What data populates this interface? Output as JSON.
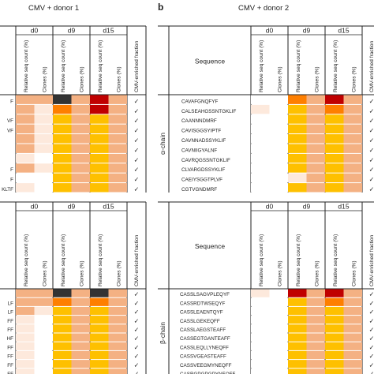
{
  "panel_b_letter": "b",
  "left_title": "CMV + donor 1",
  "right_title": "CMV + donor 2",
  "timepoints": [
    "d0",
    "d9",
    "d15"
  ],
  "col_labels": {
    "relative": "Relative seq count (%)",
    "clones": "Clones (%)",
    "enriched": "CMV-enriched fraction"
  },
  "sequence_header": "Sequence",
  "alpha_label": "α-chain",
  "beta_label": "β-chain",
  "check_mark": "✓",
  "colors": {
    "white": "#ffffff",
    "very_light": "#fde9dc",
    "light": "#f8c4a3",
    "peach": "#f4b183",
    "amber": "#fec000",
    "orange": "#fe7f00",
    "red": "#c00000",
    "dark": "#333333"
  },
  "left_alpha": {
    "sequences": [
      "F",
      "",
      "VF",
      "VF",
      "",
      "",
      "",
      "F",
      "F",
      "KLTF"
    ],
    "rows": [
      [
        "peach",
        "peach",
        "dark",
        "peach",
        "red",
        "peach"
      ],
      [
        "peach",
        "very_light",
        "orange",
        "peach",
        "red",
        "peach"
      ],
      [
        "peach",
        "very_light",
        "amber",
        "peach",
        "amber",
        "peach"
      ],
      [
        "peach",
        "very_light",
        "amber",
        "peach",
        "amber",
        "peach"
      ],
      [
        "peach",
        "very_light",
        "amber",
        "peach",
        "amber",
        "peach"
      ],
      [
        "peach",
        "very_light",
        "amber",
        "peach",
        "amber",
        "peach"
      ],
      [
        "very_light",
        "white",
        "amber",
        "peach",
        "amber",
        "peach"
      ],
      [
        "peach",
        "very_light",
        "amber",
        "peach",
        "amber",
        "peach"
      ],
      [
        "white",
        "white",
        "amber",
        "peach",
        "amber",
        "peach"
      ],
      [
        "very_light",
        "white",
        "amber",
        "peach",
        "amber",
        "peach"
      ]
    ]
  },
  "right_alpha": {
    "sequences": [
      "CAVAFGNQFYF",
      "CALSEAHGSSNTGKLIF",
      "CAANNNDMRF",
      "CAVISGGSYIPTF",
      "CAVNNADSSYKLIF",
      "CAVNIIGYALNF",
      "CAVRQGSSNTGKLIF",
      "CLVARGDSSYKLIF",
      "CAEIYSGGTPLVF",
      "CGTVGNDMRF"
    ],
    "rows": [
      [
        "white",
        "white",
        "orange",
        "peach",
        "red",
        "peach"
      ],
      [
        "very_light",
        "white",
        "amber",
        "peach",
        "orange",
        "peach"
      ],
      [
        "white",
        "white",
        "amber",
        "peach",
        "amber",
        "peach"
      ],
      [
        "white",
        "white",
        "amber",
        "peach",
        "amber",
        "peach"
      ],
      [
        "white",
        "white",
        "amber",
        "peach",
        "amber",
        "peach"
      ],
      [
        "white",
        "white",
        "amber",
        "peach",
        "amber",
        "peach"
      ],
      [
        "white",
        "white",
        "amber",
        "peach",
        "amber",
        "peach"
      ],
      [
        "white",
        "white",
        "amber",
        "peach",
        "amber",
        "peach"
      ],
      [
        "white",
        "white",
        "very_light",
        "peach",
        "amber",
        "peach"
      ],
      [
        "white",
        "white",
        "amber",
        "peach",
        "amber",
        "peach"
      ]
    ]
  },
  "left_beta": {
    "sequences": [
      "",
      "LF",
      "LF",
      "FF",
      "FF",
      "HF",
      "FF",
      "FF",
      "FF",
      "FF"
    ],
    "rows": [
      [
        "peach",
        "peach",
        "dark",
        "peach",
        "dark",
        "peach"
      ],
      [
        "peach",
        "peach",
        "orange",
        "peach",
        "orange",
        "peach"
      ],
      [
        "peach",
        "very_light",
        "amber",
        "peach",
        "amber",
        "peach"
      ],
      [
        "very_light",
        "white",
        "amber",
        "peach",
        "amber",
        "peach"
      ],
      [
        "very_light",
        "white",
        "amber",
        "peach",
        "amber",
        "peach"
      ],
      [
        "very_light",
        "white",
        "amber",
        "peach",
        "amber",
        "peach"
      ],
      [
        "very_light",
        "white",
        "amber",
        "peach",
        "amber",
        "peach"
      ],
      [
        "very_light",
        "white",
        "amber",
        "peach",
        "amber",
        "peach"
      ],
      [
        "very_light",
        "white",
        "amber",
        "peach",
        "amber",
        "peach"
      ],
      [
        "very_light",
        "white",
        "amber",
        "peach",
        "amber",
        "peach"
      ]
    ]
  },
  "right_beta": {
    "sequences": [
      "CASSLSAGVPLEQYF",
      "CASSRDTWSEQYF",
      "CASSLEAENTQYF",
      "CASSLGEKEQFF",
      "CASSLAEGSTEAFF",
      "CASSEGTGANTEAFF",
      "CASSLEQLLYNEQFF",
      "CASSVGEASTEAFF",
      "CASSVEEGMYNEQFF",
      "CASRGPGPGPYNEQFF"
    ],
    "rows": [
      [
        "very_light",
        "white",
        "red",
        "peach",
        "red",
        "peach"
      ],
      [
        "white",
        "white",
        "amber",
        "peach",
        "orange",
        "peach"
      ],
      [
        "white",
        "white",
        "amber",
        "peach",
        "amber",
        "peach"
      ],
      [
        "white",
        "white",
        "amber",
        "peach",
        "amber",
        "peach"
      ],
      [
        "white",
        "white",
        "amber",
        "peach",
        "amber",
        "peach"
      ],
      [
        "white",
        "white",
        "amber",
        "peach",
        "amber",
        "peach"
      ],
      [
        "white",
        "white",
        "amber",
        "peach",
        "amber",
        "peach"
      ],
      [
        "white",
        "white",
        "amber",
        "peach",
        "amber",
        "peach"
      ],
      [
        "white",
        "white",
        "amber",
        "peach",
        "amber",
        "peach"
      ],
      [
        "white",
        "white",
        "amber",
        "peach",
        "amber",
        "peach"
      ]
    ]
  }
}
